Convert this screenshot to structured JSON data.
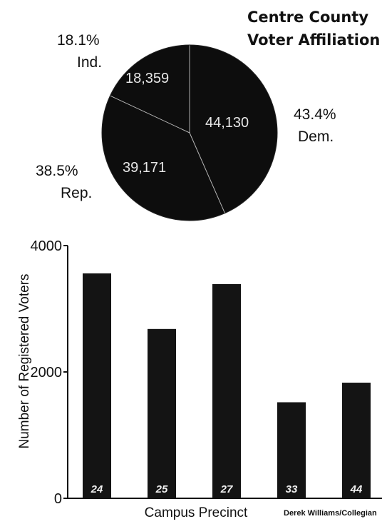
{
  "chart_data": [
    {
      "type": "pie",
      "title_lines": [
        "Centre County",
        "Voter Affiliation"
      ],
      "slices": [
        {
          "category": "Dem.",
          "percent_label": "43.4%",
          "count_label": "44,130",
          "value": 44130,
          "percent": 43.4
        },
        {
          "category": "Rep.",
          "percent_label": "38.5%",
          "count_label": "39,171",
          "value": 39171,
          "percent": 38.5
        },
        {
          "category": "Ind.",
          "percent_label": "18.1%",
          "count_label": "18,359",
          "value": 18359,
          "percent": 18.1
        }
      ],
      "colors": {
        "fill": "#0d0d0d",
        "divider": "#f2f2f2",
        "count_text": "#e6e6e6"
      }
    },
    {
      "type": "bar",
      "categories": [
        "24",
        "25",
        "27",
        "33",
        "44"
      ],
      "values": [
        3560,
        2680,
        3390,
        1520,
        1830
      ],
      "xlabel": "Campus Precinct",
      "ylabel": "Number of Registered Voters",
      "ylim": [
        0,
        4000
      ],
      "yticks": [
        {
          "value": 0,
          "label": "0"
        },
        {
          "value": 2000,
          "label": "2000"
        },
        {
          "value": 4000,
          "label": "4000"
        }
      ],
      "grid": false,
      "colors": {
        "bar": "#141414",
        "bar_label": "#f0f0f0",
        "axis": "#111111"
      }
    }
  ],
  "credit": "Derek Williams/Collegian"
}
